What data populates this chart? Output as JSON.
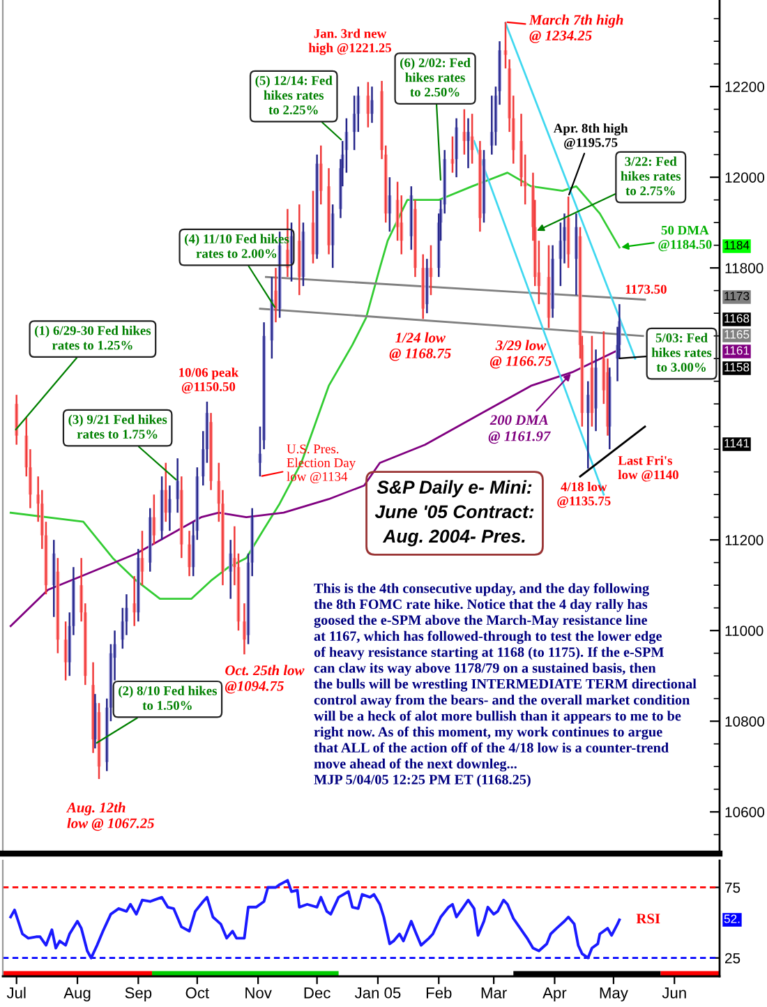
{
  "chart_data": [
    {
      "type": "candlestick",
      "title": "S&P Daily e- Mini:\nJune '05 Contract:\nAug. 2004- Pres.",
      "x": [
        "2004-07-01",
        "2004-07-06",
        "2004-07-08",
        "2004-07-12",
        "2004-07-14",
        "2004-07-16",
        "2004-07-20",
        "2004-07-22",
        "2004-07-26",
        "2004-07-28",
        "2004-07-30",
        "2004-08-03",
        "2004-08-05",
        "2004-08-09",
        "2004-08-10",
        "2004-08-12",
        "2004-08-16",
        "2004-08-18",
        "2004-08-20",
        "2004-08-24",
        "2004-08-26",
        "2004-08-30",
        "2004-09-01",
        "2004-09-03",
        "2004-09-07",
        "2004-09-09",
        "2004-09-13",
        "2004-09-15",
        "2004-09-17",
        "2004-09-21",
        "2004-09-23",
        "2004-09-27",
        "2004-09-29",
        "2004-10-01",
        "2004-10-04",
        "2004-10-06",
        "2004-10-08",
        "2004-10-12",
        "2004-10-14",
        "2004-10-18",
        "2004-10-20",
        "2004-10-22",
        "2004-10-25",
        "2004-10-27",
        "2004-10-29",
        "2004-11-02",
        "2004-11-04",
        "2004-11-08",
        "2004-11-10",
        "2004-11-12",
        "2004-11-16",
        "2004-11-18",
        "2004-11-22",
        "2004-11-24",
        "2004-11-29",
        "2004-12-01",
        "2004-12-03",
        "2004-12-07",
        "2004-12-09",
        "2004-12-13",
        "2004-12-14",
        "2004-12-16",
        "2004-12-20",
        "2004-12-22",
        "2004-12-27",
        "2004-12-29",
        "2005-01-03",
        "2005-01-05",
        "2005-01-07",
        "2005-01-11",
        "2005-01-13",
        "2005-01-18",
        "2005-01-20",
        "2005-01-24",
        "2005-01-26",
        "2005-01-28",
        "2005-02-01",
        "2005-02-02",
        "2005-02-04",
        "2005-02-08",
        "2005-02-10",
        "2005-02-14",
        "2005-02-16",
        "2005-02-18",
        "2005-02-22",
        "2005-02-24",
        "2005-02-28",
        "2005-03-02",
        "2005-03-04",
        "2005-03-07",
        "2005-03-09",
        "2005-03-11",
        "2005-03-15",
        "2005-03-17",
        "2005-03-21",
        "2005-03-22",
        "2005-03-24",
        "2005-03-29",
        "2005-03-31",
        "2005-04-04",
        "2005-04-06",
        "2005-04-08",
        "2005-04-12",
        "2005-04-14",
        "2005-04-15",
        "2005-04-18",
        "2005-04-20",
        "2005-04-22",
        "2005-04-26",
        "2005-04-28",
        "2005-04-29",
        "2005-05-03",
        "2005-05-04"
      ],
      "ohlc": [
        [
          11500,
          11520,
          11410,
          11430
        ],
        [
          11430,
          11470,
          11340,
          11360
        ],
        [
          11360,
          11400,
          11270,
          11300
        ],
        [
          11300,
          11340,
          11240,
          11280
        ],
        [
          11280,
          11310,
          11180,
          11210
        ],
        [
          11210,
          11240,
          11080,
          11100
        ],
        [
          11100,
          11200,
          11030,
          11170
        ],
        [
          11130,
          11160,
          10950,
          10980
        ],
        [
          10980,
          11020,
          10890,
          10930
        ],
        [
          10930,
          11040,
          10900,
          11010
        ],
        [
          11010,
          11140,
          10990,
          11110
        ],
        [
          11100,
          11160,
          11020,
          11040
        ],
        [
          11040,
          11060,
          10880,
          10900
        ],
        [
          10880,
          10930,
          10730,
          10760
        ],
        [
          10760,
          10860,
          10740,
          10840
        ],
        [
          10820,
          10840,
          10672.5,
          10700
        ],
        [
          10710,
          10850,
          10690,
          10830
        ],
        [
          10830,
          10970,
          10800,
          10950
        ],
        [
          10940,
          11000,
          10890,
          10970
        ],
        [
          10980,
          11050,
          10960,
          11020
        ],
        [
          11020,
          11080,
          10990,
          11050
        ],
        [
          11060,
          11120,
          11010,
          11040
        ],
        [
          11040,
          11180,
          11020,
          11160
        ],
        [
          11160,
          11220,
          11100,
          11130
        ],
        [
          11150,
          11270,
          11130,
          11250
        ],
        [
          11250,
          11300,
          11190,
          11210
        ],
        [
          11220,
          11340,
          11200,
          11310
        ],
        [
          11310,
          11370,
          11240,
          11260
        ],
        [
          11260,
          11320,
          11220,
          11290
        ],
        [
          11290,
          11380,
          11260,
          11330
        ],
        [
          11310,
          11340,
          11160,
          11190
        ],
        [
          11190,
          11220,
          11120,
          11140
        ],
        [
          11140,
          11240,
          11120,
          11210
        ],
        [
          11220,
          11360,
          11200,
          11340
        ],
        [
          11340,
          11440,
          11320,
          11400
        ],
        [
          11400,
          11505,
          11370,
          11480
        ],
        [
          11460,
          11480,
          11310,
          11330
        ],
        [
          11330,
          11370,
          11240,
          11280
        ],
        [
          11280,
          11310,
          11100,
          11130
        ],
        [
          11130,
          11200,
          11070,
          11170
        ],
        [
          11160,
          11230,
          11100,
          11140
        ],
        [
          11140,
          11170,
          11000,
          11020
        ],
        [
          11020,
          11060,
          10947.5,
          10980
        ],
        [
          10990,
          11170,
          10970,
          11150
        ],
        [
          11150,
          11270,
          11120,
          11250
        ],
        [
          11370,
          11450,
          11340,
          11390
        ],
        [
          11420,
          11680,
          11400,
          11650
        ],
        [
          11640,
          11780,
          11600,
          11730
        ],
        [
          11750,
          11800,
          11680,
          11710
        ],
        [
          11710,
          11880,
          11690,
          11850
        ],
        [
          11840,
          11930,
          11780,
          11800
        ],
        [
          11810,
          11900,
          11770,
          11870
        ],
        [
          11860,
          11940,
          11740,
          11780
        ],
        [
          11780,
          11900,
          11760,
          11880
        ],
        [
          11900,
          11970,
          11810,
          11830
        ],
        [
          11830,
          12050,
          11820,
          12030
        ],
        [
          12030,
          12070,
          11940,
          11970
        ],
        [
          11980,
          12020,
          11830,
          11850
        ],
        [
          11850,
          11940,
          11800,
          11920
        ],
        [
          11930,
          12040,
          11910,
          12020
        ],
        [
          12020,
          12080,
          11980,
          12050
        ],
        [
          12060,
          12130,
          12010,
          12100
        ],
        [
          12100,
          12180,
          12060,
          12140
        ],
        [
          12140,
          12200,
          12100,
          12180
        ],
        [
          12180,
          12210,
          12110,
          12140
        ],
        [
          12140,
          12200,
          12120,
          12170
        ],
        [
          12190,
          12212.5,
          12040,
          12060
        ],
        [
          12050,
          12070,
          11900,
          11920
        ],
        [
          11920,
          12000,
          11880,
          11960
        ],
        [
          11950,
          11990,
          11860,
          11890
        ],
        [
          11900,
          11960,
          11830,
          11860
        ],
        [
          11870,
          11980,
          11840,
          11960
        ],
        [
          11930,
          11950,
          11780,
          11800
        ],
        [
          11800,
          11830,
          11687.5,
          11710
        ],
        [
          11720,
          11820,
          11700,
          11800
        ],
        [
          11800,
          11850,
          11740,
          11780
        ],
        [
          11800,
          11920,
          11780,
          11900
        ],
        [
          11900,
          11950,
          11860,
          11930
        ],
        [
          11940,
          12060,
          11920,
          12040
        ],
        [
          12040,
          12090,
          12010,
          12030
        ],
        [
          12040,
          12130,
          12000,
          12110
        ],
        [
          12100,
          12150,
          12050,
          12080
        ],
        [
          12080,
          12130,
          12020,
          12100
        ],
        [
          12090,
          12140,
          12030,
          12060
        ],
        [
          12060,
          12080,
          11880,
          11910
        ],
        [
          11920,
          12060,
          11900,
          12040
        ],
        [
          12070,
          12180,
          12050,
          12100
        ],
        [
          12100,
          12200,
          12070,
          12180
        ],
        [
          12190,
          12300,
          12160,
          12280
        ],
        [
          12280,
          12342.5,
          12240,
          12270
        ],
        [
          12240,
          12260,
          12100,
          12130
        ],
        [
          12130,
          12180,
          12030,
          12060
        ],
        [
          12080,
          12140,
          11980,
          12000
        ],
        [
          11990,
          12050,
          11940,
          11980
        ],
        [
          11980,
          12010,
          11860,
          11890
        ],
        [
          11890,
          11950,
          11760,
          11780
        ],
        [
          11790,
          11860,
          11720,
          11760
        ],
        [
          11780,
          11850,
          11667.5,
          11690
        ],
        [
          11710,
          11850,
          11690,
          11820
        ],
        [
          11820,
          11900,
          11760,
          11860
        ],
        [
          11860,
          11920,
          11810,
          11890
        ],
        [
          11910,
          11957.5,
          11800,
          11830
        ],
        [
          11820,
          11920,
          11740,
          11890
        ],
        [
          11870,
          11890,
          11600,
          11630
        ],
        [
          11630,
          11650,
          11450,
          11480
        ],
        [
          11480,
          11550,
          11357.5,
          11520
        ],
        [
          11580,
          11650,
          11450,
          11480
        ],
        [
          11490,
          11620,
          11440,
          11580
        ],
        [
          11600,
          11660,
          11500,
          11530
        ],
        [
          11570,
          11600,
          11430,
          11450
        ],
        [
          11450,
          11580,
          11400,
          11560
        ],
        [
          11600,
          11670,
          11550,
          11630
        ],
        [
          11630,
          11720,
          11600,
          11682.5
        ]
      ],
      "series": [
        {
          "type": "line",
          "color": "#33cc33",
          "x": [
            "2004-06-28",
            "2004-08-04",
            "2004-08-19",
            "2004-08-31",
            "2004-09-12",
            "2004-09-28",
            "2004-10-08",
            "2004-10-17",
            "2004-10-26",
            "2004-11-02",
            "2004-11-12",
            "2004-11-23",
            "2004-12-07",
            "2004-12-19",
            "2004-12-26",
            "2005-01-02",
            "2005-01-06",
            "2005-01-16",
            "2005-02-01",
            "2005-02-18",
            "2005-03-08",
            "2005-03-20",
            "2005-04-05",
            "2005-04-12",
            "2005-04-24",
            "2005-05-04"
          ],
          "values": [
            11260,
            11240,
            11160,
            11110,
            11070,
            11070,
            11110,
            11140,
            11160,
            11210,
            11280,
            11370,
            11540,
            11630,
            11690,
            11800,
            11860,
            11950,
            11950,
            11980,
            12010,
            11980,
            11970,
            11980,
            11920,
            11845
          ]
        },
        {
          "type": "line",
          "color": "#800080",
          "x": [
            "2004-06-28",
            "2004-07-17",
            "2004-08-03",
            "2004-08-31",
            "2004-10-03",
            "2004-10-12",
            "2004-10-26",
            "2004-11-14",
            "2004-12-07",
            "2004-12-25",
            "2005-01-02",
            "2005-01-25",
            "2005-02-23",
            "2005-03-20",
            "2005-04-10",
            "2005-05-04"
          ],
          "values": [
            11010,
            11090,
            11120,
            11170,
            11250,
            11260,
            11250,
            11260,
            11290,
            11320,
            11370,
            11410,
            11480,
            11540,
            11570,
            11620
          ]
        },
        {
          "type": "line",
          "color": "#808080",
          "x": [
            "2004-11-05",
            "2005-05-17"
          ],
          "values": [
            11780,
            11730
          ]
        },
        {
          "type": "line",
          "color": "#808080",
          "x": [
            "2004-11-02",
            "2005-05-16"
          ],
          "values": [
            11710,
            11650
          ]
        },
        {
          "type": "line",
          "color": "#40d8f0",
          "x": [
            "2005-03-07",
            "2005-05-12"
          ],
          "values": [
            12340,
            11600
          ]
        },
        {
          "type": "line",
          "color": "#40d8f0",
          "x": [
            "2005-02-19",
            "2005-04-26"
          ],
          "values": [
            12080,
            11300
          ]
        },
        {
          "type": "line",
          "color": "#000000",
          "x": [
            "2005-04-14",
            "2005-05-17"
          ],
          "values": [
            11340,
            11450
          ]
        }
      ],
      "xlim": [
        "2004-06-24",
        "2005-06-24"
      ],
      "ylim": [
        10508,
        12391
      ],
      "yticks": [
        {
          "value": 10550,
          "label": null
        },
        {
          "value": 10600,
          "label": "10600"
        },
        {
          "value": 10650,
          "label": null
        },
        {
          "value": 10700,
          "label": null
        },
        {
          "value": 10750,
          "label": null
        },
        {
          "value": 10800,
          "label": "10800"
        },
        {
          "value": 10850,
          "label": null
        },
        {
          "value": 10900,
          "label": null
        },
        {
          "value": 10950,
          "label": null
        },
        {
          "value": 11000,
          "label": "11000"
        },
        {
          "value": 11050,
          "label": null
        },
        {
          "value": 11100,
          "label": null
        },
        {
          "value": 11150,
          "label": null
        },
        {
          "value": 11200,
          "label": "11200"
        },
        {
          "value": 11250,
          "label": null
        },
        {
          "value": 11300,
          "label": null
        },
        {
          "value": 11350,
          "label": null
        },
        {
          "value": 11400,
          "label": null
        },
        {
          "value": 11450,
          "label": null
        },
        {
          "value": 11500,
          "label": null
        },
        {
          "value": 11550,
          "label": null
        },
        {
          "value": 11600,
          "label": null
        },
        {
          "value": 11650,
          "label": null
        },
        {
          "value": 11700,
          "label": null
        },
        {
          "value": 11750,
          "label": null
        },
        {
          "value": 11800,
          "label": "11800"
        },
        {
          "value": 11850,
          "label": null
        },
        {
          "value": 11900,
          "label": null
        },
        {
          "value": 11950,
          "label": null
        },
        {
          "value": 12000,
          "label": "12000"
        },
        {
          "value": 12050,
          "label": null
        },
        {
          "value": 12100,
          "label": null
        },
        {
          "value": 12150,
          "label": null
        },
        {
          "value": 12200,
          "label": "12200"
        },
        {
          "value": 12250,
          "label": null
        },
        {
          "value": 12300,
          "label": null
        },
        {
          "value": 12350,
          "label": null
        }
      ],
      "tick_labels": "y",
      "annotations": [
        "Jan. 3rd new\nhigh @1221.25",
        {
          "text": "March 7th high\n@ 1234.25",
          "x": "2005-03-07",
          "y": 12342.5
        },
        {
          "text": "(5) 12/14: Fed\nhikes rates\nto 2.25%",
          "x": "2004-12-14",
          "y": 12080
        },
        {
          "text": "(6) 2/02: Fed\nhikes rates\nto 2.50%",
          "x": "2005-02-02",
          "y": 11990
        },
        {
          "text": "Apr. 8th high\n@1195.75",
          "x": "2005-04-08",
          "y": 11957.5
        },
        {
          "text": "3/22: Fed\nhikes rates\nto 2.75%",
          "x": "2005-03-22",
          "y": 11880
        },
        {
          "text": "50 DMA\n@1184.50",
          "x": "2005-05-04",
          "y": 11845
        },
        {
          "text": "(4) 11/10 Fed hikes\nrates to 2.00%",
          "x": "2004-11-10",
          "y": 11710
        },
        {
          "text": "1173.50",
          "x": "2005-05-04",
          "y": 11735
        },
        {
          "text": "(1) 6/29-30 Fed hikes\nrates to 1.25%",
          "x": "2004-06-30",
          "y": 11440
        },
        {
          "text": "1/24 low\n@ 1168.75",
          "x": "2005-01-24",
          "y": 11687.5
        },
        {
          "text": "3/29 low\n@ 1166.75",
          "x": "2005-03-29",
          "y": 11667.5
        },
        {
          "text": "5/03: Fed\nhikes rates\nto 3.00%",
          "x": "2005-05-03",
          "y": 11600
        },
        {
          "text": "10/06 peak\n@1150.50",
          "x": "2004-10-06",
          "y": 11505
        },
        {
          "text": "(3) 9/21 Fed hikes\nrates to 1.75%",
          "x": "2004-09-21",
          "y": 11330
        },
        {
          "text": "200 DMA\n@ 1161.97",
          "x": "2005-04-10",
          "y": 11570
        },
        {
          "text": "U.S. Pres.\nElection Day\nlow @1134",
          "x": "2004-11-02",
          "y": 11340
        },
        {
          "text": "Last Fri's\nlow @1140",
          "x": "2005-04-29",
          "y": 11400
        },
        {
          "text": "4/18 low\n@1135.75",
          "x": "2005-04-18",
          "y": 11357.5
        },
        {
          "text": "(2) 8/10 Fed hikes\nto 1.50%",
          "x": "2004-08-10",
          "y": 10750
        },
        {
          "text": "Oct. 25th low\n@1094.75",
          "x": "2004-10-25",
          "y": 10947.5
        },
        {
          "text": "Aug. 12th\nlow @ 1067.25",
          "x": "2004-08-12",
          "y": 10672.5
        },
        "This is the 4th consecutive upday, and the day following\nthe 8th FOMC rate hike. Notice that the 4 day rally has\ngoosed the e-SPM above the March-May resistance line\nat 1167, which has followed-through to test the lower edge\nof heavy resistance starting at 1168 (to 1175). If the e-SPM\ncan claw its way above 1178/79 on a sustained basis, then\nthe bulls will be wrestling INTERMEDIATE TERM directional\ncontrol away from the bears- and the overall market condition\nwill be a heck of alot more bullish than it appears to me to be\nright now. As of this moment, my work continues to argue\nthat ALL of the action off of the 4/18 low is a counter-trend\nmove ahead of the next downleg...\nMJP 5/04/05 12:25 PM ET (1168.25)",
        "1184",
        "1173",
        "1168",
        "1165",
        "1161",
        "1158",
        "1141"
      ]
    },
    {
      "type": "line",
      "x": [
        "2004-06-28",
        "2004-06-30",
        "2004-07-04",
        "2004-07-07",
        "2004-07-11",
        "2004-07-13",
        "2004-07-16",
        "2004-07-19",
        "2004-07-21",
        "2004-07-23",
        "2004-07-26",
        "2004-07-28",
        "2004-08-01",
        "2004-08-03",
        "2004-08-06",
        "2004-08-08",
        "2004-08-11",
        "2004-08-14",
        "2004-08-18",
        "2004-08-22",
        "2004-08-26",
        "2004-08-28",
        "2004-08-31",
        "2004-09-03",
        "2004-09-07",
        "2004-09-09",
        "2004-09-13",
        "2004-09-16",
        "2004-09-19",
        "2004-09-23",
        "2004-09-27",
        "2004-09-30",
        "2004-10-04",
        "2004-10-06",
        "2004-10-09",
        "2004-10-13",
        "2004-10-16",
        "2004-10-19",
        "2004-10-21",
        "2004-10-25",
        "2004-10-27",
        "2004-10-31",
        "2004-11-04",
        "2004-11-06",
        "2004-11-10",
        "2004-11-12",
        "2004-11-16",
        "2004-11-18",
        "2004-11-21",
        "2004-11-22",
        "2004-11-26",
        "2004-12-01",
        "2004-12-03",
        "2004-12-06",
        "2004-12-08",
        "2004-12-12",
        "2004-12-17",
        "2004-12-19",
        "2004-12-22",
        "2004-12-24",
        "2004-12-28",
        "2004-12-30",
        "2005-01-02",
        "2005-01-04",
        "2005-01-07",
        "2005-01-09",
        "2005-01-12",
        "2005-01-14",
        "2005-01-18",
        "2005-01-20",
        "2005-01-23",
        "2005-01-27",
        "2005-01-29",
        "2005-02-02",
        "2005-02-06",
        "2005-02-08",
        "2005-02-10",
        "2005-02-13",
        "2005-02-16",
        "2005-02-19",
        "2005-02-21",
        "2005-02-24",
        "2005-02-26",
        "2005-03-01",
        "2005-03-03",
        "2005-03-06",
        "2005-03-08",
        "2005-03-11",
        "2005-03-14",
        "2005-03-18",
        "2005-03-21",
        "2005-03-24",
        "2005-03-28",
        "2005-03-30",
        "2005-04-02",
        "2005-04-06",
        "2005-04-08",
        "2005-04-11",
        "2005-04-13",
        "2005-04-15",
        "2005-04-18",
        "2005-04-20",
        "2005-04-23",
        "2005-04-24",
        "2005-04-28",
        "2005-04-30",
        "2005-05-03",
        "2005-05-04"
      ],
      "series": [
        {
          "name": "RSI",
          "color": "#1a1aff",
          "values": [
            54,
            59,
            42,
            39,
            40,
            40,
            34,
            45,
            32,
            37,
            34,
            42,
            51,
            46,
            30,
            25,
            34,
            44,
            56,
            60,
            58,
            63,
            56,
            66,
            65,
            66,
            68,
            61,
            60,
            47,
            44,
            58,
            65,
            68,
            54,
            49,
            39,
            44,
            39,
            39,
            61,
            61,
            65,
            75,
            75,
            77,
            80,
            72,
            73,
            61,
            63,
            61,
            68,
            58,
            56,
            68,
            72,
            61,
            60,
            70,
            68,
            70,
            63,
            54,
            35,
            37,
            42,
            37,
            51,
            44,
            34,
            39,
            42,
            54,
            61,
            63,
            54,
            60,
            66,
            60,
            41,
            51,
            61,
            56,
            58,
            66,
            63,
            53,
            47,
            39,
            32,
            30,
            35,
            42,
            46,
            51,
            54,
            49,
            34,
            28,
            25,
            32,
            35,
            42,
            46,
            41,
            49,
            52
          ]
        }
      ],
      "xlim": [
        "2004-06-24",
        "2005-06-24"
      ],
      "ylim": [
        12,
        94
      ],
      "xticks": [
        {
          "value": "2004-07-01",
          "label": "Jul"
        },
        {
          "value": "2004-08-01",
          "label": "Aug"
        },
        {
          "value": "2004-09-01",
          "label": "Sep"
        },
        {
          "value": "2004-10-01",
          "label": "Oct"
        },
        {
          "value": "2004-11-01",
          "label": "Nov"
        },
        {
          "value": "2004-12-01",
          "label": "Dec"
        },
        {
          "value": "2005-01-01",
          "label": "Jan 05"
        },
        {
          "value": "2005-02-01",
          "label": "Feb"
        },
        {
          "value": "2005-03-01",
          "label": "Mar"
        },
        {
          "value": "2005-04-01",
          "label": "Apr"
        },
        {
          "value": "2005-05-01",
          "label": "May"
        },
        {
          "value": "2005-06-01",
          "label": "Jun"
        }
      ],
      "yticks": [
        25,
        75
      ],
      "ref_lines": [
        {
          "axis": "y",
          "value": 75,
          "color": "#ff0000",
          "line_style": "dashed"
        },
        {
          "axis": "y",
          "value": 25,
          "color": "#0000ff",
          "line_style": "dashed"
        }
      ],
      "bands": [
        {
          "axis": "x",
          "from": "2004-06-24",
          "to": "2004-09-08",
          "color": "#ff0000"
        },
        {
          "axis": "x",
          "from": "2004-09-08",
          "to": "2004-12-12",
          "color": "#00cc00"
        },
        {
          "axis": "x",
          "from": "2005-03-11",
          "to": "2005-05-25",
          "color": "#000000"
        },
        {
          "axis": "x",
          "from": "2005-05-25",
          "to": "2005-06-24",
          "color": "#ff0000"
        }
      ],
      "annotations": [
        "52."
      ]
    }
  ]
}
